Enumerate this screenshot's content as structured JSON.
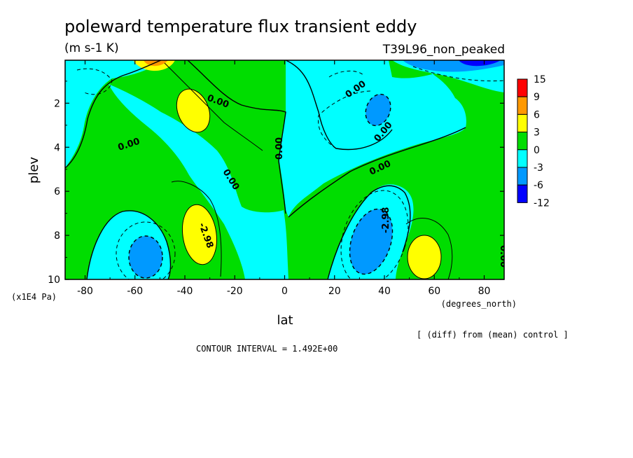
{
  "chart_data": {
    "type": "heatmap",
    "title": "poleward temperature flux transient eddy",
    "units": "(m s-1 K)",
    "dataset": "T39L96_non_peaked",
    "xlabel": "lat",
    "xunits": "(degrees_north)",
    "ylabel": "plev",
    "yunits": "(x1E4 Pa)",
    "xlim": [
      -88,
      88
    ],
    "ylim": [
      10,
      0.05
    ],
    "x_ticks": [
      "-80",
      "-60",
      "-40",
      "-20",
      "0",
      "20",
      "40",
      "60",
      "80"
    ],
    "y_ticks": [
      "2",
      "4",
      "6",
      "8",
      "10"
    ],
    "contour_interval": "CONTOUR INTERVAL = 1.492E+00",
    "note": "[ (diff) from (mean) control ]",
    "contour_labels": [
      "0.00",
      "0.00",
      "0.00",
      "0.00",
      "0.00",
      "0.00",
      "0.00",
      "-2.98",
      "-2.98",
      "0.00"
    ],
    "colorbar": {
      "levels": [
        "15",
        "9",
        "6",
        "3",
        "0",
        "-3",
        "-6",
        "-12"
      ],
      "colors": [
        "#ff0000",
        "#ff9900",
        "#ffff00",
        "#00dd00",
        "#00ffff",
        "#0099ff",
        "#0000ff"
      ]
    },
    "features": [
      {
        "lat": -35,
        "plev": 2.3,
        "sign": "positive",
        "category": "3 to 6"
      },
      {
        "lat": -35,
        "plev": 8.4,
        "sign": "positive",
        "category": "3 to 6"
      },
      {
        "lat": 58,
        "plev": 9.0,
        "sign": "positive",
        "category": "3 to 6"
      },
      {
        "lat": -58,
        "plev": 9.0,
        "sign": "negative",
        "category": "-6 to -3"
      },
      {
        "lat": 33,
        "plev": 8.6,
        "sign": "negative",
        "category": "-6 to -3"
      },
      {
        "lat": 37,
        "plev": 2.4,
        "sign": "negative",
        "category": "-6 to -3"
      },
      {
        "lat": 70,
        "plev": 0.3,
        "sign": "negative",
        "category": "-6 to -3"
      }
    ]
  }
}
